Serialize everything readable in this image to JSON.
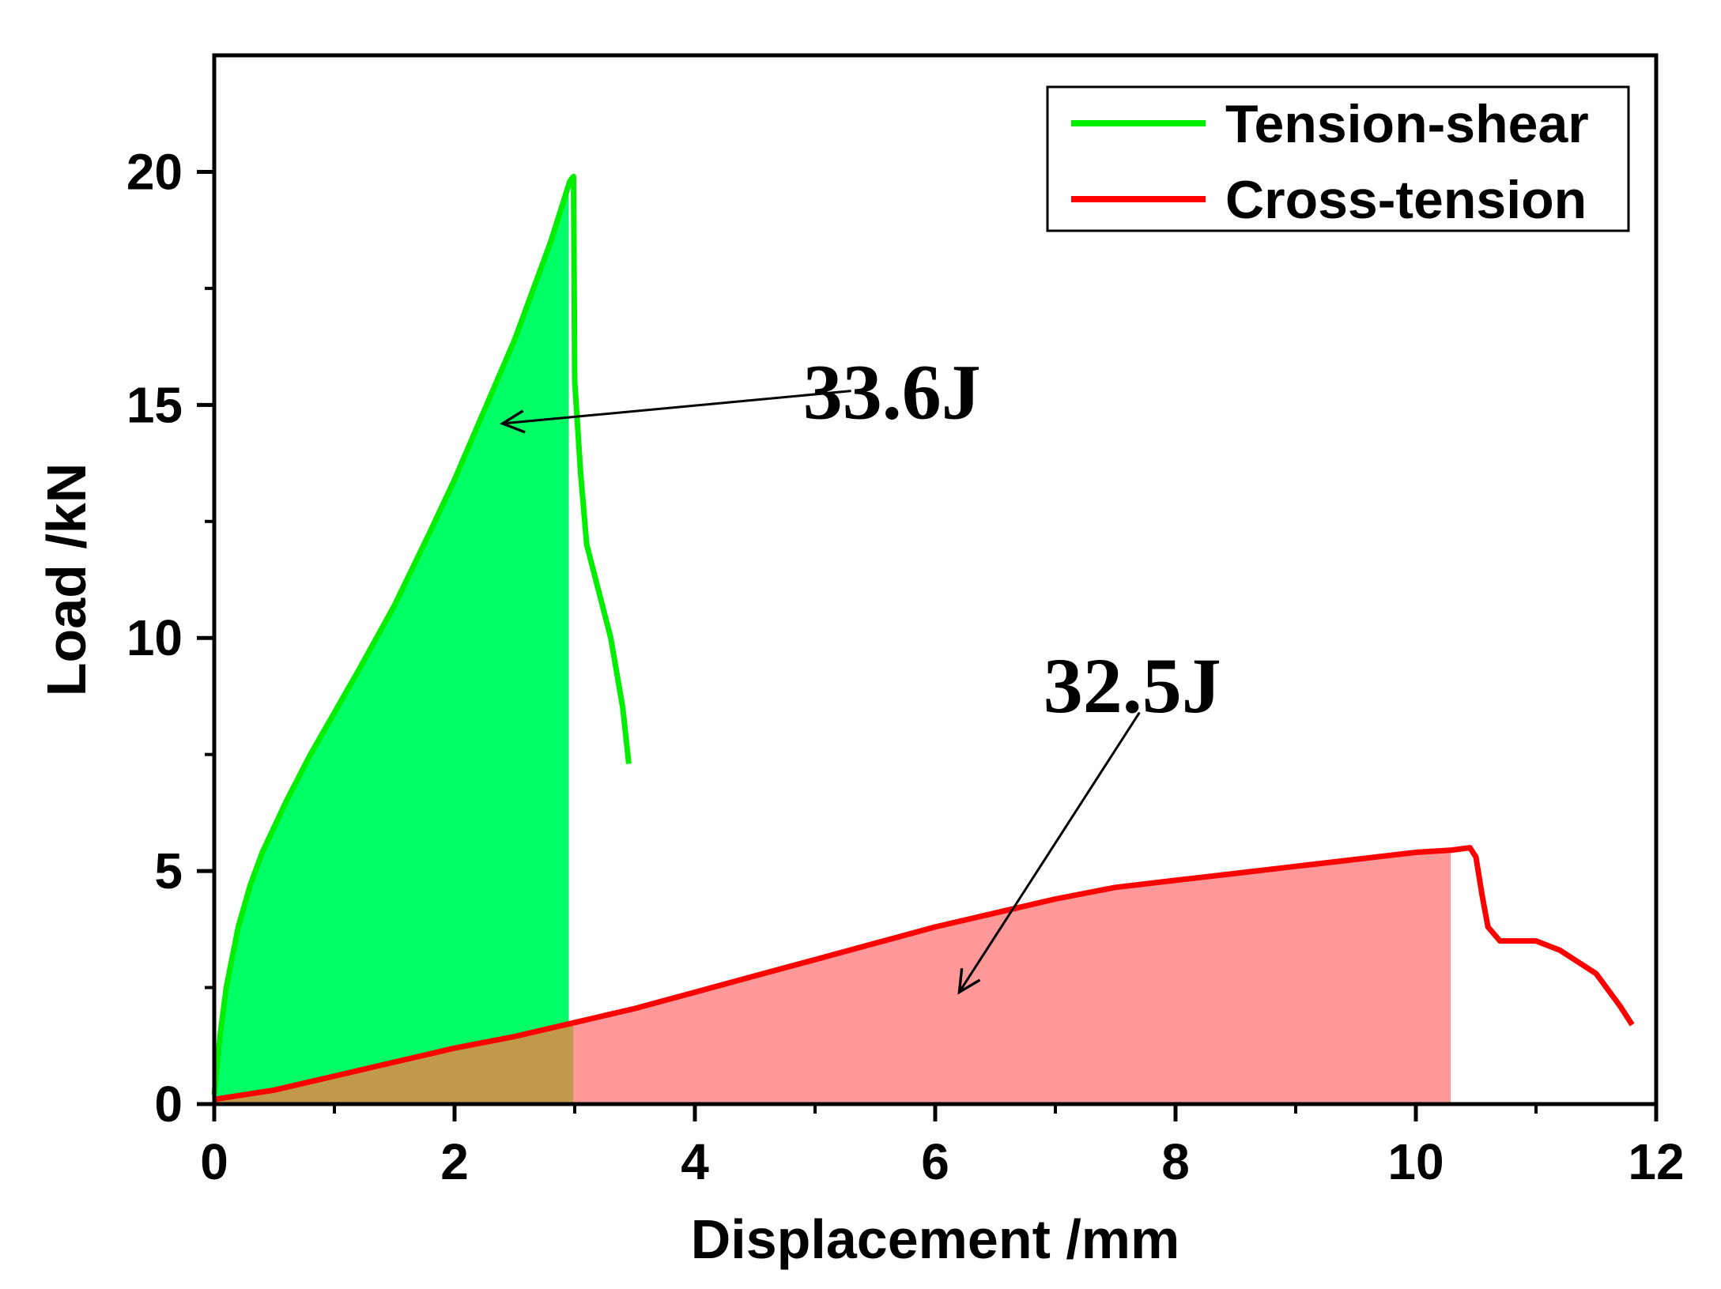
{
  "chart_data": {
    "type": "line",
    "xlabel": "Displacement /mm",
    "ylabel": "Load /kN",
    "xlim": [
      0,
      12
    ],
    "ylim": [
      0,
      22.5
    ],
    "x_ticks": [
      0,
      2,
      4,
      6,
      8,
      10,
      12
    ],
    "y_ticks": [
      0,
      5,
      10,
      15,
      20
    ],
    "x_tick_labels": [
      "0",
      "2",
      "4",
      "6",
      "8",
      "10",
      "12"
    ],
    "y_tick_labels": [
      "0",
      "5",
      "10",
      "15",
      "20"
    ],
    "grid": false,
    "legend_position": "top-right",
    "series": [
      {
        "name": "Tension-shear",
        "color": "#00ee00",
        "fill_color": "#00ff66",
        "x": [
          0.0,
          0.05,
          0.1,
          0.2,
          0.3,
          0.4,
          0.6,
          0.8,
          1.0,
          1.2,
          1.5,
          1.8,
          2.0,
          2.2,
          2.5,
          2.8,
          2.96,
          2.99,
          3.0,
          3.05,
          3.1,
          3.2,
          3.3,
          3.4,
          3.45
        ],
        "y": [
          0.2,
          1.5,
          2.5,
          3.8,
          4.7,
          5.4,
          6.5,
          7.5,
          8.4,
          9.3,
          10.7,
          12.3,
          13.4,
          14.6,
          16.4,
          18.5,
          19.8,
          19.9,
          15.5,
          13.5,
          12.0,
          11.0,
          10.0,
          8.5,
          7.3
        ],
        "filled_to_x": 3.0,
        "energy_label": "33.6J"
      },
      {
        "name": "Cross-tension",
        "color": "#ff0000",
        "fill_color": "#ff9999",
        "x": [
          0.0,
          0.5,
          1.0,
          1.5,
          2.0,
          2.5,
          3.0,
          3.5,
          4.0,
          4.5,
          5.0,
          5.5,
          6.0,
          6.5,
          7.0,
          7.5,
          8.0,
          8.5,
          9.0,
          9.5,
          10.0,
          10.3,
          10.45,
          10.5,
          10.55,
          10.6,
          10.7,
          11.0,
          11.2,
          11.5,
          11.7,
          11.8
        ],
        "y": [
          0.1,
          0.3,
          0.6,
          0.9,
          1.2,
          1.45,
          1.75,
          2.05,
          2.4,
          2.75,
          3.1,
          3.45,
          3.8,
          4.1,
          4.4,
          4.65,
          4.8,
          4.95,
          5.1,
          5.25,
          5.4,
          5.45,
          5.5,
          5.3,
          4.5,
          3.8,
          3.5,
          3.5,
          3.3,
          2.8,
          2.1,
          1.7
        ],
        "filled_to_x": 10.45,
        "energy_label": "32.5J"
      }
    ],
    "annotations": [
      {
        "text": "33.6J",
        "points_to_series": "Tension-shear"
      },
      {
        "text": "32.5J",
        "points_to_series": "Cross-tension"
      }
    ]
  }
}
